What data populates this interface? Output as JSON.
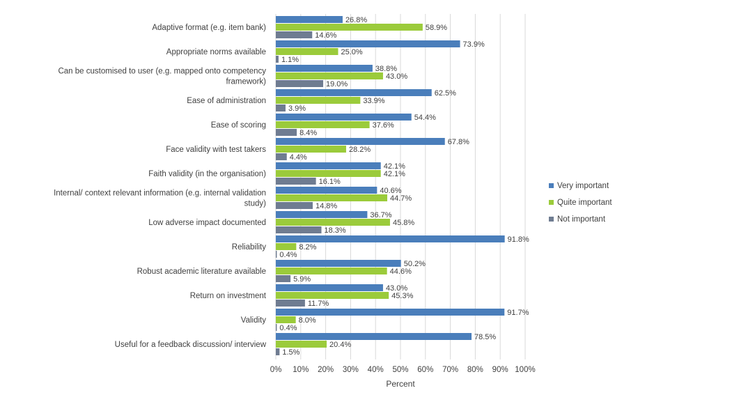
{
  "chart_data": {
    "type": "bar",
    "orientation": "horizontal",
    "categories": [
      [
        "Adaptive format (e.g. item bank)"
      ],
      [
        "Appropriate norms available"
      ],
      [
        "Can be customised to user (e.g. mapped onto competency",
        "framework)"
      ],
      [
        "Ease of administration"
      ],
      [
        "Ease of scoring"
      ],
      [
        "Face validity with test takers"
      ],
      [
        "Faith validity (in the organisation)"
      ],
      [
        "Internal/ context relevant information (e.g. internal validation",
        "study)"
      ],
      [
        "Low adverse impact documented"
      ],
      [
        "Reliability"
      ],
      [
        "Robust academic literature available"
      ],
      [
        "Return on investment"
      ],
      [
        "Validity"
      ],
      [
        "Useful for a feedback discussion/ interview"
      ]
    ],
    "series": [
      {
        "name": "Very important",
        "color": "#4A7EBB",
        "values": [
          26.8,
          73.9,
          38.8,
          62.5,
          54.4,
          67.8,
          42.1,
          40.6,
          36.7,
          91.8,
          50.2,
          43.0,
          91.7,
          78.5
        ],
        "labels": [
          "26.8%",
          "73.9%",
          "38.8%",
          "62.5%",
          "54.4%",
          "67.8%",
          "42.1%",
          "40.6%",
          "36.7%",
          "91.8%",
          "50.2%",
          "43.0%",
          "91.7%",
          "78.5%"
        ]
      },
      {
        "name": "Quite important",
        "color": "#9BCB3B",
        "values": [
          58.9,
          25.0,
          43.0,
          33.9,
          37.6,
          28.2,
          42.1,
          44.7,
          45.8,
          8.2,
          44.6,
          45.3,
          8.0,
          20.4
        ],
        "labels": [
          "58.9%",
          "25.0%",
          "43.0%",
          "33.9%",
          "37.6%",
          "28.2%",
          "42.1%",
          "44.7%",
          "45.8%",
          "8.2%",
          "44.6%",
          "45.3%",
          "8.0%",
          "20.4%"
        ]
      },
      {
        "name": "Not important",
        "color": "#6F7C91",
        "values": [
          14.6,
          1.1,
          19.0,
          3.9,
          8.4,
          4.4,
          16.1,
          14.8,
          18.3,
          0.4,
          5.9,
          11.7,
          0.4,
          1.5
        ],
        "labels": [
          "14.6%",
          "1.1%",
          "19.0%",
          "3.9%",
          "8.4%",
          "4.4%",
          "16.1%",
          "14.8%",
          "18.3%",
          "0.4%",
          "5.9%",
          "11.7%",
          "0.4%",
          "1.5%"
        ]
      }
    ],
    "xlim": [
      0,
      100
    ],
    "xticks": [
      "0%",
      "10%",
      "20%",
      "30%",
      "40%",
      "50%",
      "60%",
      "70%",
      "80%",
      "90%",
      "100%"
    ],
    "xlabel": "Percent",
    "ylabel": "",
    "title": "",
    "grid": "vertical",
    "gridColor": "#D9D9D9",
    "legend": "right"
  }
}
